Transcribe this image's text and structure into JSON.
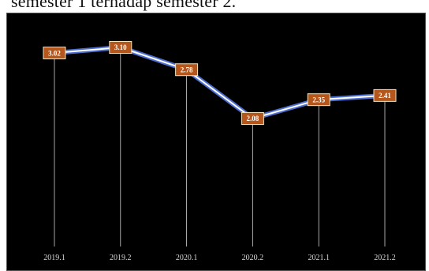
{
  "caption": "semester 1 terhadap semester 2.",
  "chart_data": {
    "type": "line",
    "title": "",
    "xlabel": "",
    "ylabel": "",
    "categories": [
      "2019.1",
      "2019.2",
      "2020.1",
      "2020.2",
      "2021.1",
      "2021.2"
    ],
    "series": [
      {
        "values": [
          3.02,
          3.1,
          2.78,
          2.08,
          2.35,
          2.41
        ],
        "data_labels": [
          "3.02",
          "3.10",
          "2.78",
          "2.08",
          "2.35",
          "2.41"
        ]
      }
    ],
    "ylim": [
      0,
      3.5
    ],
    "grid": false,
    "background_color": "#000000",
    "line_color": "#ffffff",
    "line_glow_color": "#4f6fd0",
    "label_box_color": "#b5571c",
    "label_box_border": "#f2e2c0",
    "drop_line_color": "#d0d0d0"
  }
}
